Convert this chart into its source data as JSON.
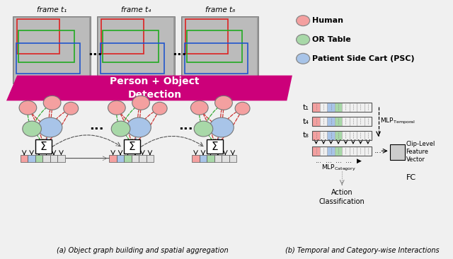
{
  "frame_labels": [
    "frame t₁",
    "frame t₄",
    "frame t₈"
  ],
  "legend_labels": [
    "Human",
    "OR Table",
    "Patient Side Cart (PSC)"
  ],
  "legend_colors": [
    "#f4a0a0",
    "#a8d8a8",
    "#a8c4e8"
  ],
  "detection_banner": "Person + Object\nDetection",
  "detection_color": "#cc007a",
  "graph_label": "(a) Object graph building and spatial aggregation",
  "temporal_label": "(b) Temporal and Category-wise Interactions",
  "human_color": "#f4a0a0",
  "table_color": "#a8d8a8",
  "psc_color": "#a8c4e8",
  "timeline_labels": [
    "t₁",
    "t₄",
    "t₈"
  ],
  "clip_level": "Clip-Level\nFeature\nVector",
  "fc_label": "FC",
  "action_label": "Action\nClassification",
  "bg_color": "#f0f0f0"
}
